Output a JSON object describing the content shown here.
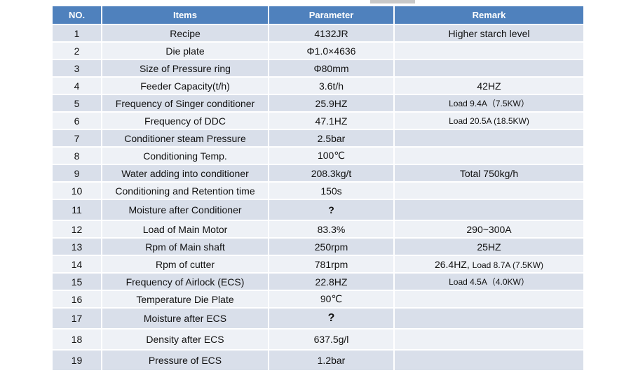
{
  "headers": {
    "no": "NO.",
    "items": "Items",
    "parameter": "Parameter",
    "remark": "Remark"
  },
  "rows": [
    {
      "no": "1",
      "item": "Recipe",
      "parameter": "4132JR",
      "remark": "Higher  starch level"
    },
    {
      "no": "2",
      "item": "Die plate",
      "parameter": "Φ1.0×4636",
      "remark": ""
    },
    {
      "no": "3",
      "item": "Size of Pressure ring",
      "parameter": "Φ80mm",
      "remark": ""
    },
    {
      "no": "4",
      "item": "Feeder Capacity(t/h)",
      "parameter": "3.6t/h",
      "remark": "42HZ"
    },
    {
      "no": "5",
      "item": "Frequency of Singer conditioner",
      "parameter": "25.9HZ",
      "remark": "Load 9.4A（7.5KW）"
    },
    {
      "no": "6",
      "item": "Frequency of DDC",
      "parameter": "47.1HZ",
      "remark": "Load 20.5A (18.5KW)"
    },
    {
      "no": "7",
      "item": "Conditioner steam Pressure",
      "parameter": "2.5bar",
      "remark": ""
    },
    {
      "no": "8",
      "item": "Conditioning Temp.",
      "parameter": "100℃",
      "remark": ""
    },
    {
      "no": "9",
      "item": "Water adding into conditioner",
      "parameter": "208.3kg/t",
      "remark": "Total 750kg/h"
    },
    {
      "no": "10",
      "item": "Conditioning and Retention time",
      "parameter": "150s",
      "remark": ""
    },
    {
      "no": "11",
      "item": "Moisture after Conditioner",
      "parameter": "?",
      "remark": ""
    },
    {
      "no": "12",
      "item": "Load of Main Motor",
      "parameter": "83.3%",
      "remark": "290~300A"
    },
    {
      "no": "13",
      "item": "Rpm of Main shaft",
      "parameter": "250rpm",
      "remark": "25HZ"
    },
    {
      "no": "14",
      "item": "Rpm of cutter",
      "parameter": "781rpm",
      "remark": "26.4HZ, ",
      "remark_extra": "Load 8.7A (7.5KW)"
    },
    {
      "no": "15",
      "item": "Frequency of Airlock (ECS)",
      "parameter": "22.8HZ",
      "remark": "Load 4.5A（4.0KW）"
    },
    {
      "no": "16",
      "item": "Temperature Die Plate",
      "parameter": "90℃",
      "remark": ""
    },
    {
      "no": "17",
      "item": "Moisture after ECS",
      "parameter": "?",
      "remark": ""
    },
    {
      "no": "18",
      "item": "Density after ECS",
      "parameter": "637.5g/l",
      "remark": ""
    },
    {
      "no": "19",
      "item": "Pressure of ECS",
      "parameter": "1.2bar",
      "remark": ""
    }
  ]
}
